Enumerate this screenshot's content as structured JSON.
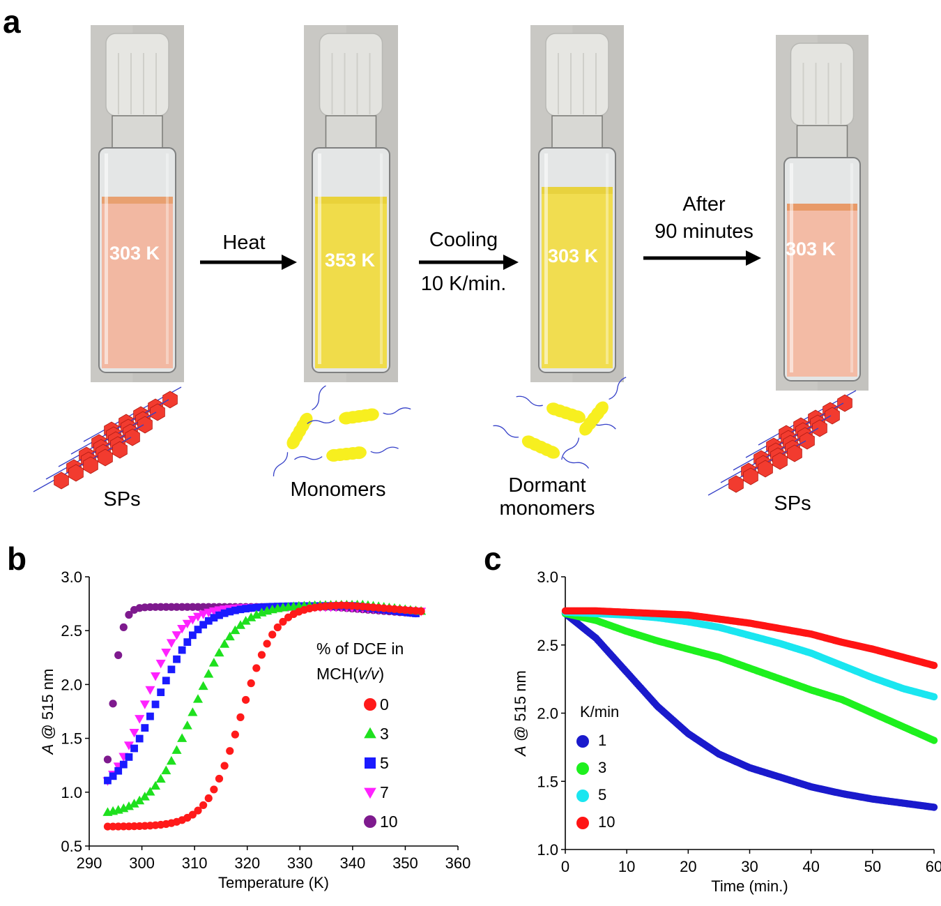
{
  "panel_a": {
    "letter": "a",
    "vials": [
      {
        "temp": "303 K",
        "cap": "#e6e6e2",
        "liquid": "#f2b8a2",
        "liquid_top": "#e8a070",
        "species": "SPs"
      },
      {
        "temp": "353 K",
        "cap": "#e3e3df",
        "liquid": "#f0dc4a",
        "liquid_top": "#e9d23a",
        "species": "Monomers"
      },
      {
        "temp": "303 K",
        "cap": "#e6e6e2",
        "liquid": "#f1dd50",
        "liquid_top": "#e8d23e",
        "species": "Dormant monomers"
      },
      {
        "temp": "303 K",
        "cap": "#e4e4e0",
        "liquid": "#f3bba5",
        "liquid_top": "#e89a68",
        "species": "SPs"
      }
    ],
    "arrows": [
      {
        "line1": "Heat",
        "line2": ""
      },
      {
        "line1": "Cooling",
        "line2": "10 K/min."
      },
      {
        "line1": "After",
        "line2": "90 minutes"
      }
    ],
    "colors": {
      "sp": "#f23b2f",
      "monomer": "#f7ef1f",
      "chain": "#3540c8"
    }
  },
  "chart_data": [
    {
      "panel": "b",
      "type": "scatter",
      "xlabel": "Temperature (K)",
      "ylabel": "A @ 515 nm",
      "ylabel_italic": "A",
      "ylabel_rest": " @ 515 nm",
      "xlim": [
        290,
        360
      ],
      "ylim": [
        0.5,
        3.0
      ],
      "xticks": [
        "290",
        "300",
        "310",
        "320",
        "330",
        "340",
        "350",
        "360"
      ],
      "yticks": [
        "0.5",
        "1.0",
        "1.5",
        "2.0",
        "2.5",
        "3.0"
      ],
      "legend_title_1": "% of DCE in",
      "legend_title_2a": "MCH(",
      "legend_title_2b": "v/v",
      "legend_title_2c": ")",
      "series": [
        {
          "name": "0",
          "color": "#ff1a1a",
          "marker": "circle",
          "x0": 293.5,
          "x1": 353,
          "n": 60,
          "low": 0.68,
          "high": 2.74,
          "mid": 318.8,
          "width": 3.2,
          "dropFrom": 338,
          "dropTo": 2.68
        },
        {
          "name": "3",
          "color": "#1ee01e",
          "marker": "triangle-up",
          "x0": 293.5,
          "x1": 353,
          "n": 60,
          "low": 0.78,
          "high": 2.74,
          "mid": 309.8,
          "width": 4.0,
          "dropFrom": 342,
          "dropTo": 2.68
        },
        {
          "name": "5",
          "color": "#1a1aff",
          "marker": "square",
          "x0": 293.5,
          "x1": 352,
          "n": 59,
          "low": 0.95,
          "high": 2.73,
          "mid": 302.8,
          "width": 4.0,
          "dropFrom": 340,
          "dropTo": 2.66
        },
        {
          "name": "7",
          "color": "#ff22ff",
          "marker": "triangle-down",
          "x0": 293.5,
          "x1": 353,
          "n": 60,
          "low": 0.9,
          "high": 2.72,
          "mid": 300.5,
          "width": 3.4,
          "dropFrom": 338,
          "dropTo": 2.68
        },
        {
          "name": "10",
          "color": "#7e1a8e",
          "marker": "circle",
          "x0": 293.5,
          "x1": 352,
          "n": 59,
          "low": 0.6,
          "high": 2.72,
          "mid": 294.2,
          "width": 1.0,
          "dropFrom": 336,
          "dropTo": 2.66
        }
      ]
    },
    {
      "panel": "c",
      "type": "scatter",
      "xlabel": "Time (min.)",
      "ylabel": "A @ 515 nm",
      "ylabel_italic": "A",
      "ylabel_rest": " @ 515 nm",
      "xlim": [
        0,
        60
      ],
      "ylim": [
        1.0,
        3.0
      ],
      "xticks": [
        "0",
        "10",
        "20",
        "30",
        "40",
        "50",
        "60"
      ],
      "yticks": [
        "1.0",
        "1.5",
        "2.0",
        "2.5",
        "3.0"
      ],
      "legend_title": "K/min",
      "series": [
        {
          "name": "1",
          "color": "#1a1acc",
          "marker": "circle",
          "points": [
            [
              0,
              2.73
            ],
            [
              5,
              2.55
            ],
            [
              10,
              2.3
            ],
            [
              15,
              2.05
            ],
            [
              20,
              1.85
            ],
            [
              25,
              1.7
            ],
            [
              30,
              1.6
            ],
            [
              35,
              1.53
            ],
            [
              40,
              1.46
            ],
            [
              45,
              1.41
            ],
            [
              50,
              1.37
            ],
            [
              55,
              1.34
            ],
            [
              60,
              1.31
            ]
          ]
        },
        {
          "name": "3",
          "color": "#1ef01e",
          "marker": "circle",
          "points": [
            [
              0,
              2.73
            ],
            [
              5,
              2.68
            ],
            [
              10,
              2.6
            ],
            [
              15,
              2.53
            ],
            [
              20,
              2.47
            ],
            [
              25,
              2.41
            ],
            [
              30,
              2.33
            ],
            [
              35,
              2.25
            ],
            [
              40,
              2.17
            ],
            [
              45,
              2.1
            ],
            [
              50,
              2.0
            ],
            [
              55,
              1.9
            ],
            [
              60,
              1.8
            ]
          ]
        },
        {
          "name": "5",
          "color": "#1ae6f0",
          "marker": "circle",
          "points": [
            [
              0,
              2.74
            ],
            [
              5,
              2.73
            ],
            [
              10,
              2.72
            ],
            [
              15,
              2.7
            ],
            [
              20,
              2.67
            ],
            [
              25,
              2.63
            ],
            [
              30,
              2.57
            ],
            [
              35,
              2.51
            ],
            [
              40,
              2.44
            ],
            [
              45,
              2.35
            ],
            [
              50,
              2.26
            ],
            [
              55,
              2.18
            ],
            [
              60,
              2.12
            ]
          ]
        },
        {
          "name": "10",
          "color": "#ff1414",
          "marker": "circle",
          "points": [
            [
              0,
              2.75
            ],
            [
              5,
              2.75
            ],
            [
              10,
              2.74
            ],
            [
              15,
              2.73
            ],
            [
              20,
              2.72
            ],
            [
              25,
              2.69
            ],
            [
              30,
              2.66
            ],
            [
              35,
              2.62
            ],
            [
              40,
              2.58
            ],
            [
              45,
              2.52
            ],
            [
              50,
              2.47
            ],
            [
              55,
              2.41
            ],
            [
              60,
              2.35
            ]
          ]
        }
      ]
    }
  ],
  "panel_b": {
    "letter": "b"
  },
  "panel_c": {
    "letter": "c"
  }
}
